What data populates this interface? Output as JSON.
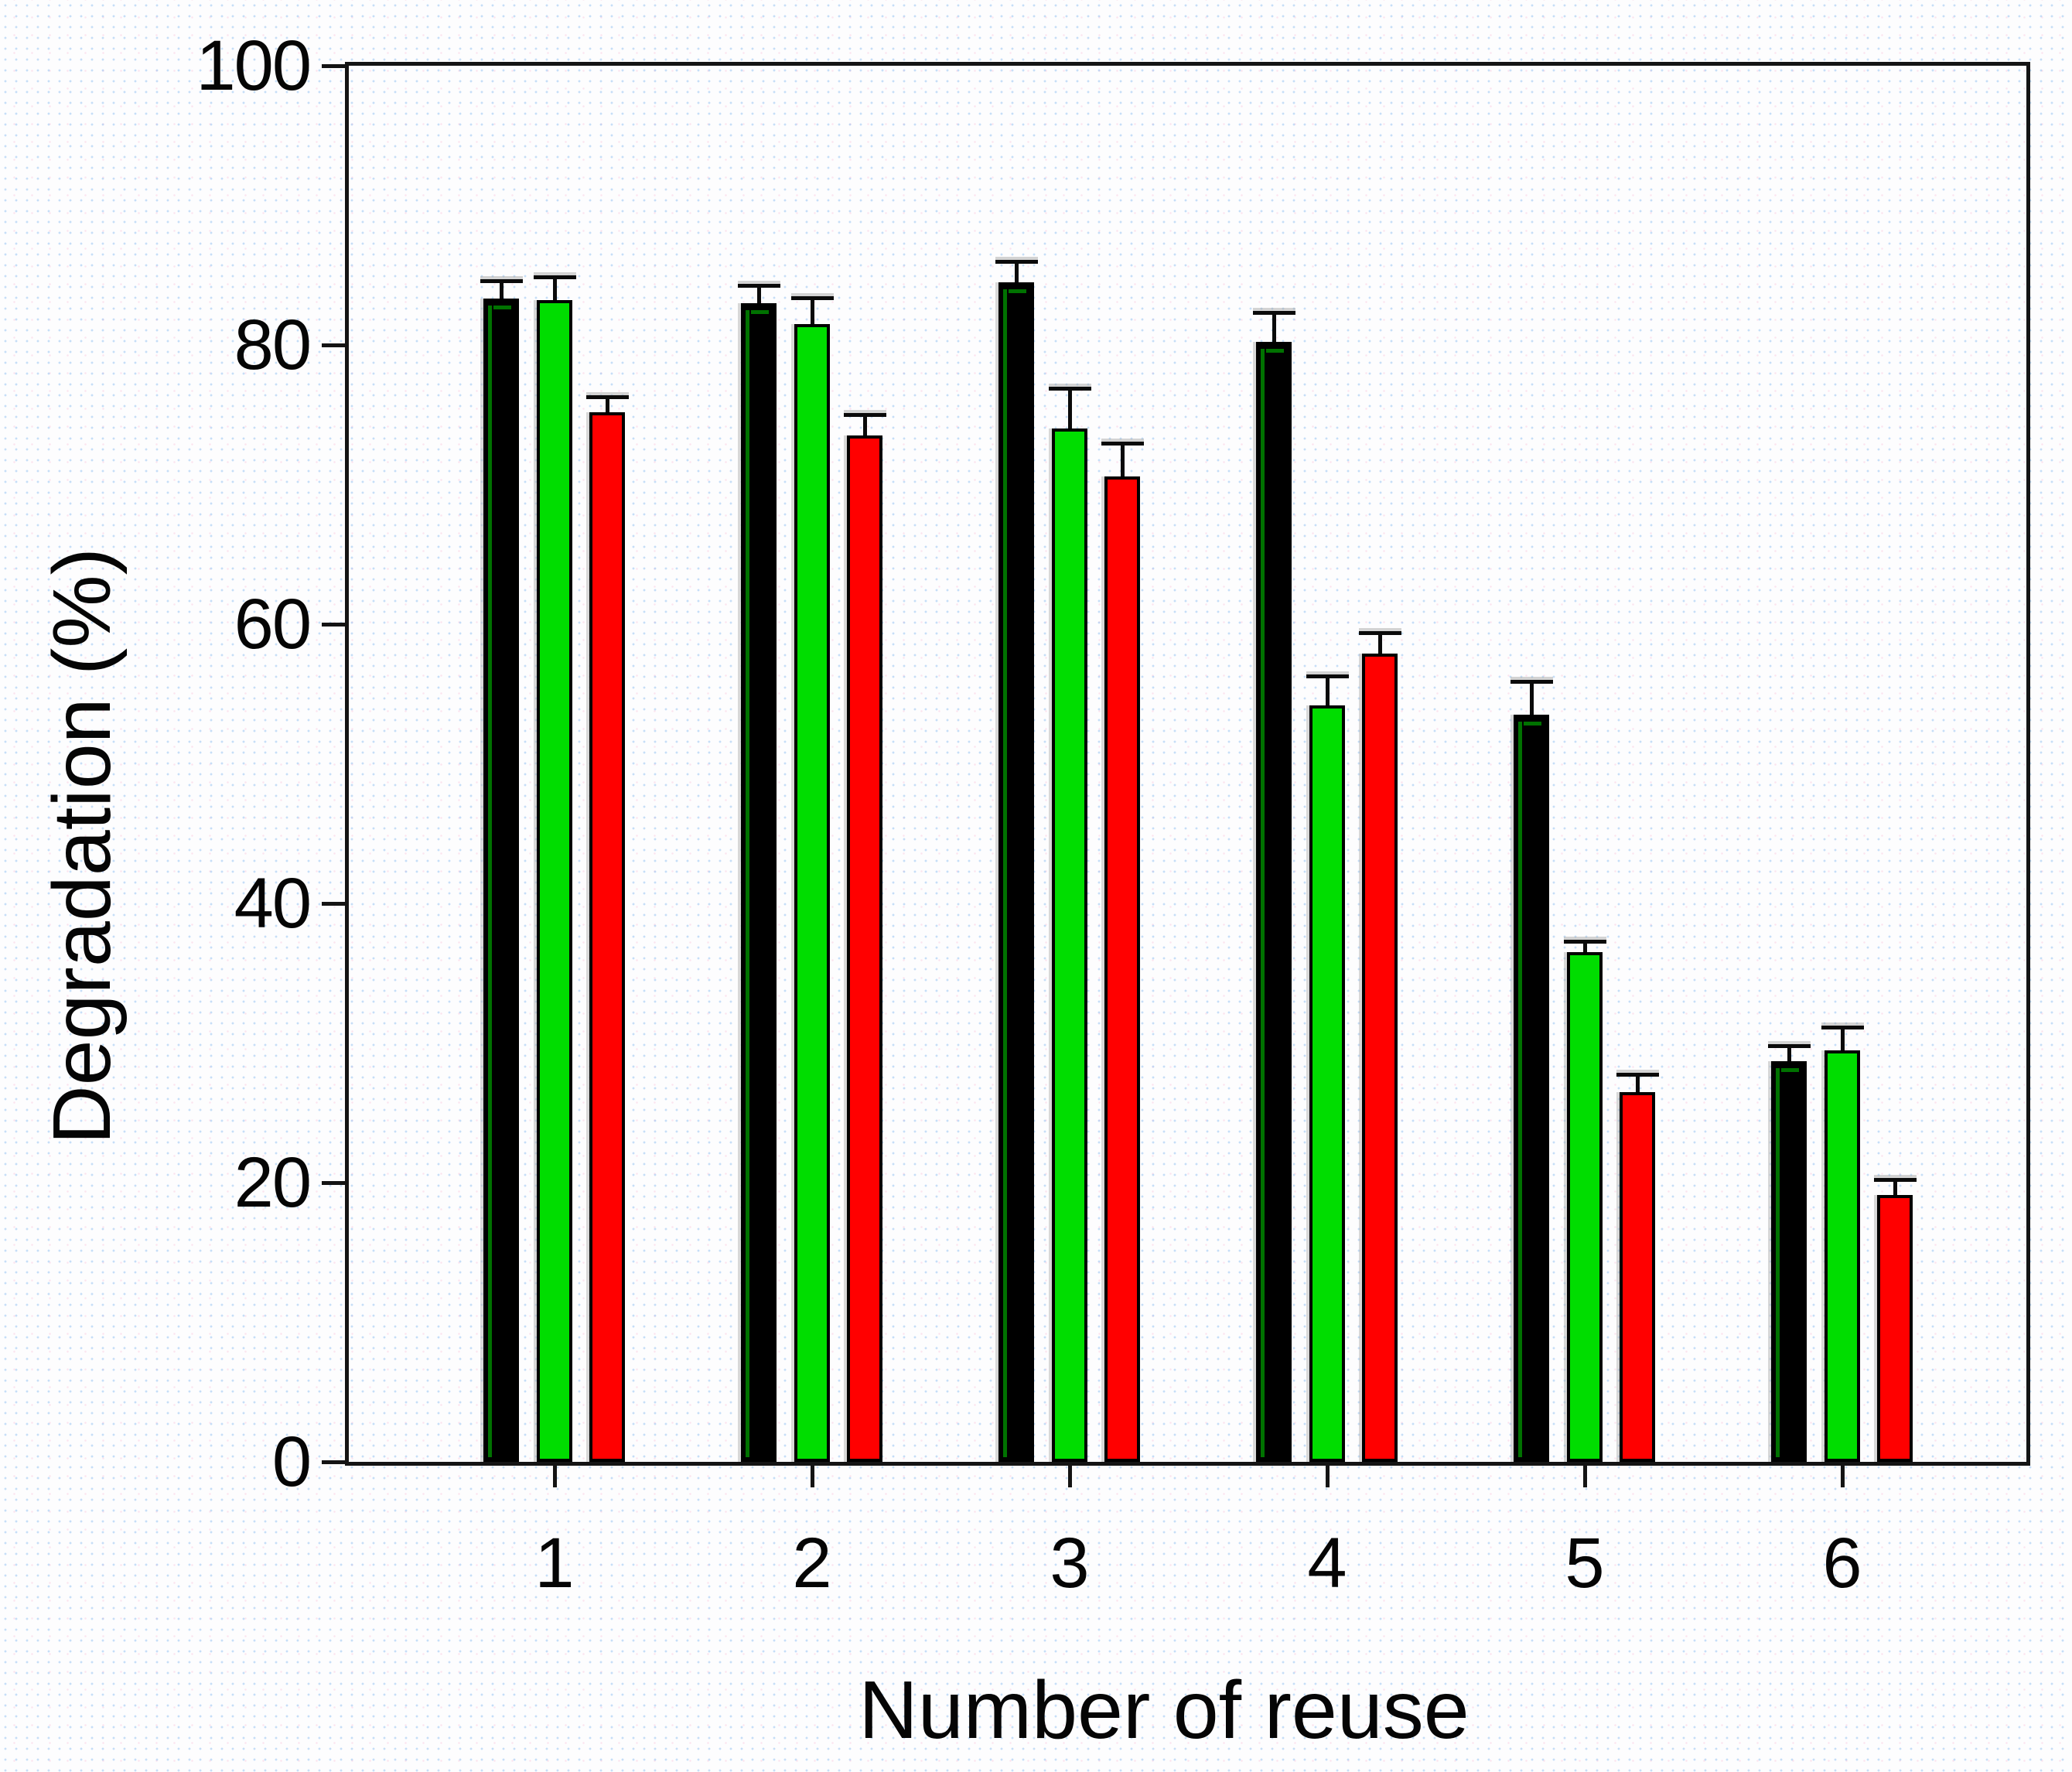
{
  "chart_data": {
    "type": "bar",
    "title": "",
    "xlabel": "Number of reuse",
    "ylabel": "Degradation (%)",
    "categories": [
      "1",
      "2",
      "3",
      "4",
      "5",
      "6"
    ],
    "series": [
      {
        "name": "black-bars",
        "color": "#000000",
        "edge_color": "#007200",
        "values": [
          83.3,
          83.0,
          84.5,
          80.2,
          53.5,
          28.7
        ],
        "errors": [
          1.4,
          1.4,
          1.6,
          2.2,
          2.5,
          1.2
        ]
      },
      {
        "name": "green-bars",
        "color": "#00dd00",
        "edge_color": "#000000",
        "values": [
          83.2,
          81.5,
          74.0,
          54.2,
          36.5,
          29.5
        ],
        "errors": [
          1.8,
          2.0,
          3.0,
          2.2,
          0.9,
          1.8
        ]
      },
      {
        "name": "red-bars",
        "color": "#ff0000",
        "edge_color": "#000000",
        "values": [
          75.2,
          73.5,
          70.6,
          57.9,
          26.5,
          19.1
        ],
        "errors": [
          1.2,
          1.6,
          2.5,
          1.6,
          1.4,
          1.2
        ]
      }
    ],
    "ylim": [
      0,
      100
    ],
    "yticks": [
      "0",
      "20",
      "40",
      "60",
      "80",
      "100"
    ],
    "grid": false,
    "legend": "none",
    "error_bars": "upper-only",
    "axis_color": "#141414",
    "background": "#fdfdfe"
  }
}
